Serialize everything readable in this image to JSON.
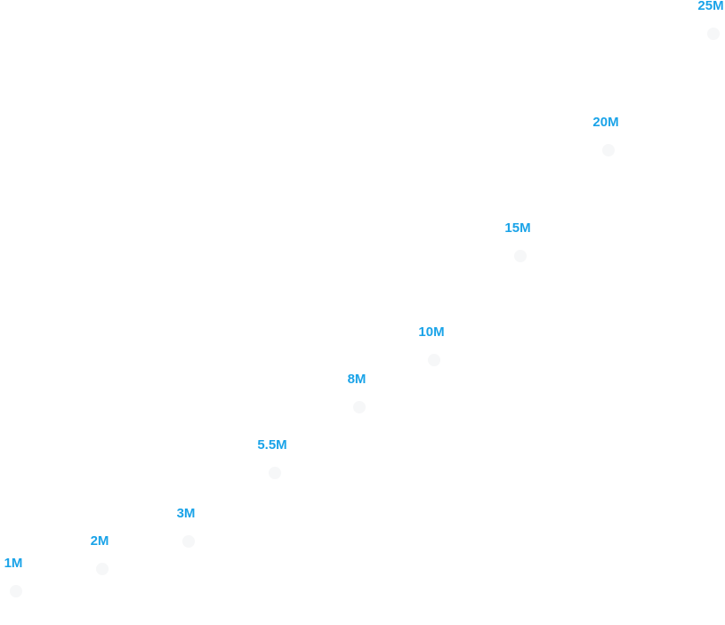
{
  "chart_data": {
    "type": "scatter",
    "title": "",
    "xlabel": "",
    "ylabel": "",
    "x": [
      1,
      2,
      3,
      4,
      5,
      6,
      7,
      8,
      9
    ],
    "values": [
      1,
      2,
      3,
      5.5,
      8,
      10,
      15,
      20,
      25
    ],
    "labels": [
      "1M",
      "2M",
      "3M",
      "5.5M",
      "8M",
      "10M",
      "15M",
      "20M",
      "25M"
    ],
    "ylim": [
      0,
      25
    ],
    "grid": false,
    "legend": "none",
    "label_color": "#1aa3e8",
    "marker_color": "#f6f7f8"
  }
}
